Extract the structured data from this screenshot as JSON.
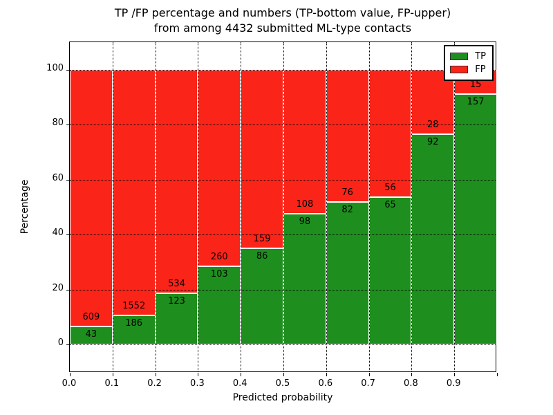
{
  "title": {
    "line1": "TP /FP percentage and numbers (TP-bottom value, FP-upper)",
    "line2": "from among 4432 submitted ML-type contacts"
  },
  "chart_data": {
    "type": "bar",
    "stacked": true,
    "title": "TP /FP percentage and numbers (TP-bottom value, FP-upper)\nfrom among 4432 submitted ML-type contacts",
    "xlabel": "Predicted probability",
    "ylabel": "Percentage",
    "xlim": [
      0.0,
      1.0
    ],
    "ylim": [
      -10,
      110
    ],
    "grid": "dotted black, both axes",
    "bar_edge_color": "#ffffff",
    "legend_position": "upper right",
    "total_contacts": 4432,
    "x_tick_labels": [
      "0.0",
      "0.1",
      "0.2",
      "0.3",
      "0.4",
      "0.5",
      "0.6",
      "0.7",
      "0.8",
      "0.9"
    ],
    "y_ticks": [
      0,
      20,
      40,
      60,
      80,
      100
    ],
    "y_tick_labels": [
      "0",
      "20",
      "40",
      "60",
      "80",
      "100"
    ],
    "series": [
      {
        "name": "TP",
        "color": "#1e8f1e"
      },
      {
        "name": "FP",
        "color": "#fb2419"
      }
    ],
    "bins": [
      {
        "x_range": [
          0.0,
          0.1
        ],
        "tp": 43,
        "fp": 609,
        "tp_pct": 6.6,
        "fp_pct": 93.4
      },
      {
        "x_range": [
          0.1,
          0.2
        ],
        "tp": 186,
        "fp": 1552,
        "tp_pct": 10.7,
        "fp_pct": 89.3
      },
      {
        "x_range": [
          0.2,
          0.3
        ],
        "tp": 123,
        "fp": 534,
        "tp_pct": 18.7,
        "fp_pct": 81.3
      },
      {
        "x_range": [
          0.3,
          0.4
        ],
        "tp": 103,
        "fp": 260,
        "tp_pct": 28.4,
        "fp_pct": 71.6
      },
      {
        "x_range": [
          0.4,
          0.5
        ],
        "tp": 86,
        "fp": 159,
        "tp_pct": 35.1,
        "fp_pct": 64.9
      },
      {
        "x_range": [
          0.5,
          0.6
        ],
        "tp": 98,
        "fp": 108,
        "tp_pct": 47.6,
        "fp_pct": 52.4
      },
      {
        "x_range": [
          0.6,
          0.7
        ],
        "tp": 82,
        "fp": 76,
        "tp_pct": 51.9,
        "fp_pct": 48.1
      },
      {
        "x_range": [
          0.7,
          0.8
        ],
        "tp": 65,
        "fp": 56,
        "tp_pct": 53.7,
        "fp_pct": 46.3
      },
      {
        "x_range": [
          0.8,
          0.9
        ],
        "tp": 92,
        "fp": 28,
        "tp_pct": 76.7,
        "fp_pct": 23.3
      },
      {
        "x_range": [
          0.9,
          1.0
        ],
        "tp": 157,
        "fp": 15,
        "tp_pct": 91.3,
        "fp_pct": 8.7
      }
    ]
  }
}
